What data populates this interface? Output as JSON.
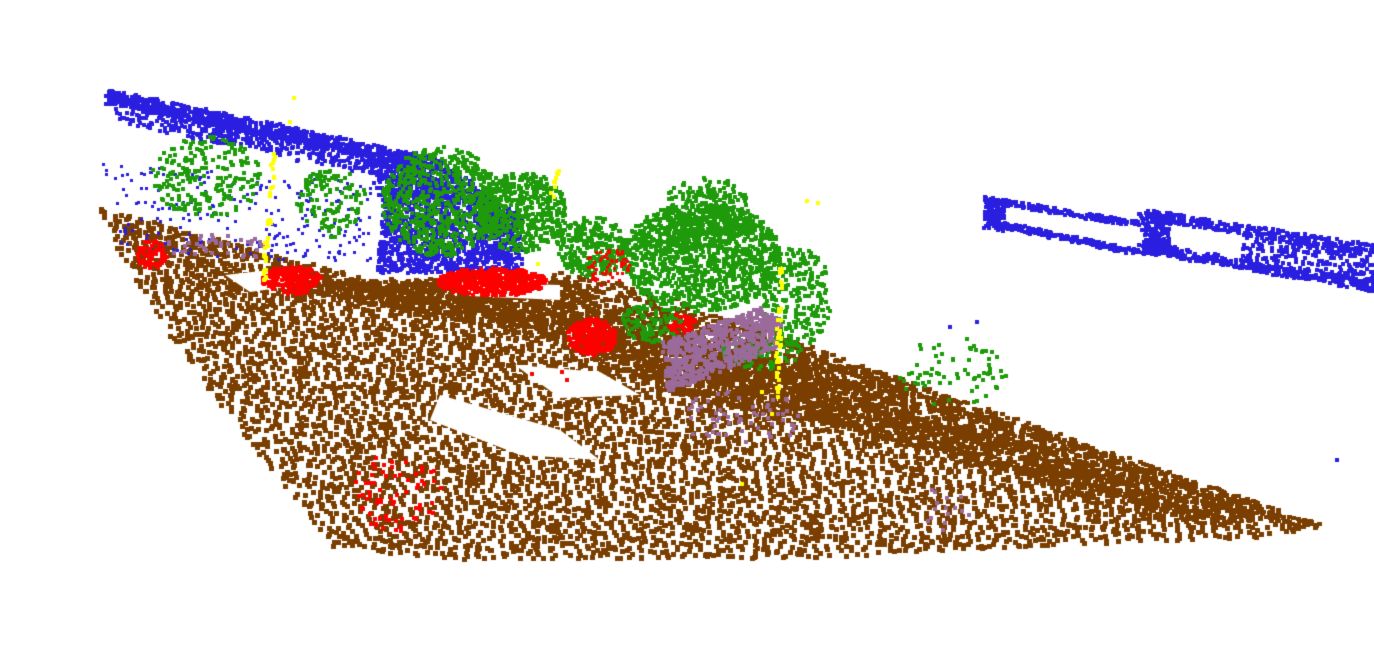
{
  "scene": {
    "background_color": "#ffffff",
    "classes": [
      {
        "key": "ground",
        "color": "#7a3f00"
      },
      {
        "key": "building",
        "color": "#2a1fe0"
      },
      {
        "key": "vegetation",
        "color": "#1e9a0a"
      },
      {
        "key": "car",
        "color": "#ff0000"
      },
      {
        "key": "pole",
        "color": "#ffff00"
      },
      {
        "key": "sidewalk",
        "color": "#9a6a9a"
      }
    ]
  }
}
